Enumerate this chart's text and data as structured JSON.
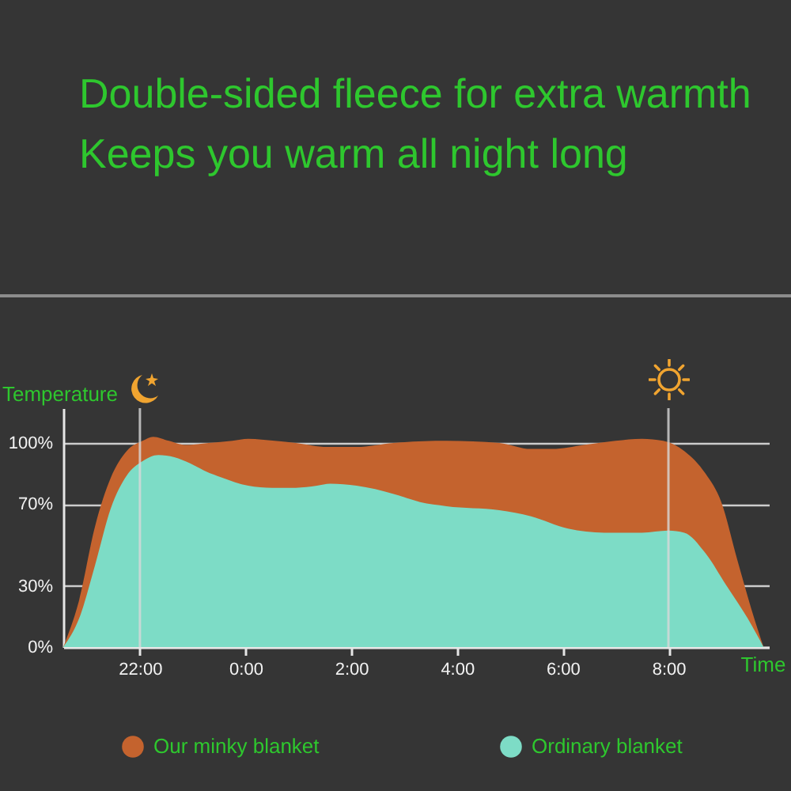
{
  "chart_data": {
    "type": "area",
    "title": "Double-sided fleece for extra warmth",
    "subtitle": "Keeps you warm all night long",
    "xlabel": "Time",
    "ylabel": "Temperature",
    "xlim": [
      "--01-01T20:33",
      "--01-02T09:54"
    ],
    "xticks": [
      {
        "value": "--01-01T22:00",
        "label": "22:00"
      },
      {
        "value": "--01-02T00:00",
        "label": "0:00"
      },
      {
        "value": "--01-02T02:00",
        "label": "2:00"
      },
      {
        "value": "--01-02T04:00",
        "label": "4:00"
      },
      {
        "value": "--01-02T06:00",
        "label": "6:00"
      },
      {
        "value": "--01-02T08:00",
        "label": "8:00"
      }
    ],
    "ylim": [
      0,
      117
    ],
    "yticks": [
      {
        "value": 0,
        "label": "0%"
      },
      {
        "value": 30,
        "label": "30%"
      },
      {
        "value": 70,
        "label": "70%"
      },
      {
        "value": 100,
        "label": "100%"
      }
    ],
    "grid": "y",
    "legend": "bottom",
    "ref_lines": [
      {
        "axis": "x",
        "value": "--01-01T22:00",
        "color": "#d8d8d8"
      },
      {
        "axis": "x",
        "value": "--01-02T08:00",
        "color": "#d8d8d8"
      }
    ],
    "series": [
      {
        "name": "Our minky blanket",
        "color": "#c4632e",
        "x": [
          "--01-01T20:33",
          "--01-01T20:51",
          "--01-01T21:09",
          "--01-01T21:27",
          "--01-01T21:45",
          "--01-01T22:03",
          "--01-01T22:15",
          "--01-01T22:33",
          "--01-01T22:51",
          "--01-01T23:18",
          "--01-01T23:45",
          "--01-02T00:03",
          "--01-02T00:33",
          "--01-02T00:57",
          "--01-02T01:33",
          "--01-02T02:06",
          "--01-02T02:48",
          "--01-02T03:48",
          "--01-02T04:48",
          "--01-02T05:24",
          "--01-02T05:48",
          "--01-02T06:24",
          "--01-02T07:00",
          "--01-02T07:30",
          "--01-02T07:54",
          "--01-02T08:18",
          "--01-02T08:42",
          "--01-02T09:00",
          "--01-02T09:18",
          "--01-02T09:36",
          "--01-02T09:48"
        ],
        "values": [
          0,
          23,
          59,
          83,
          96,
          101,
          103,
          101,
          99,
          100,
          101,
          102,
          101,
          100,
          98,
          98,
          100,
          101,
          100,
          97,
          97,
          99,
          101,
          102,
          101,
          96,
          85,
          71,
          43,
          16,
          0
        ]
      },
      {
        "name": "Ordinary blanket",
        "color": "#7ddcc6",
        "x": [
          "--01-01T20:33",
          "--01-01T20:51",
          "--01-01T21:09",
          "--01-01T21:27",
          "--01-01T21:45",
          "--01-01T22:03",
          "--01-01T22:21",
          "--01-01T22:39",
          "--01-01T22:57",
          "--01-01T23:15",
          "--01-01T23:33",
          "--01-02T00:03",
          "--01-02T00:30",
          "--01-02T00:57",
          "--01-02T01:21",
          "--01-02T01:36",
          "--01-02T02:06",
          "--01-02T02:48",
          "--01-02T03:18",
          "--01-02T03:48",
          "--01-02T04:48",
          "--01-02T05:24",
          "--01-02T06:06",
          "--01-02T06:48",
          "--01-02T07:30",
          "--01-02T08:00",
          "--01-02T08:18",
          "--01-02T08:42",
          "--01-02T09:06",
          "--01-02T09:30",
          "--01-02T09:48"
        ],
        "values": [
          0,
          14,
          40,
          68,
          84,
          91,
          94,
          93,
          90,
          86,
          83,
          79,
          78,
          78,
          79,
          80,
          79,
          75,
          71,
          69,
          67,
          64,
          58,
          56,
          56,
          57,
          56,
          46,
          30,
          14,
          0
        ]
      }
    ]
  }
}
